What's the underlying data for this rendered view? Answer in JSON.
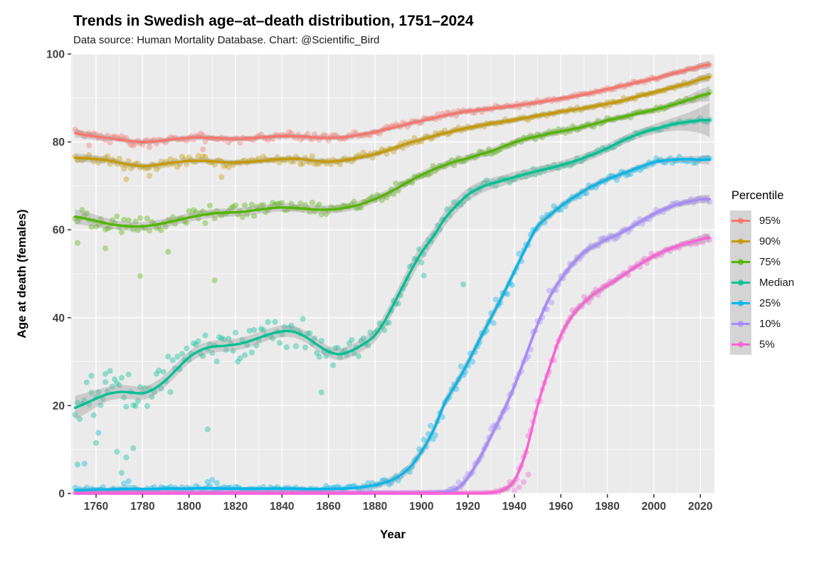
{
  "header": {
    "title": "Trends in Swedish age–at–death distribution, 1751–2024",
    "subtitle": "Data source: Human Mortality Database. Chart: @Scientific_Bird"
  },
  "axes": {
    "x": {
      "label": "Year",
      "ticks": [
        1760,
        1780,
        1800,
        1820,
        1840,
        1860,
        1880,
        1900,
        1920,
        1940,
        1960,
        1980,
        2000,
        2020
      ],
      "minor": [
        1750,
        1770,
        1790,
        1810,
        1830,
        1850,
        1870,
        1890,
        1910,
        1930,
        1950,
        1970,
        1990,
        2010
      ],
      "range": [
        1751,
        2024
      ]
    },
    "y": {
      "label": "Age at death (females)",
      "ticks": [
        0,
        20,
        40,
        60,
        80,
        100
      ],
      "minor": [
        10,
        30,
        50,
        70,
        90
      ],
      "range": [
        0,
        100
      ]
    }
  },
  "legend": {
    "title": "Percentile",
    "items": [
      {
        "label": "95%",
        "color": "#F8766D"
      },
      {
        "label": "90%",
        "color": "#C49A00"
      },
      {
        "label": "75%",
        "color": "#53B400"
      },
      {
        "label": "Median",
        "color": "#00C094"
      },
      {
        "label": "25%",
        "color": "#00B6EB"
      },
      {
        "label": "10%",
        "color": "#A58AFF"
      },
      {
        "label": "5%",
        "color": "#FB61D7"
      }
    ]
  },
  "style": {
    "panel_bg": "#EBEBEB",
    "grid_color": "#FFFFFF",
    "band_color": "#A0A0A0",
    "tick_label_color": "#404040",
    "axis_title_color": "#000000",
    "point_alpha": 0.38
  },
  "chart_data": {
    "type": "line",
    "title": "Trends in Swedish age-at-death distribution, 1751-2024",
    "xlabel": "Year",
    "ylabel": "Age at death (females)",
    "xlim": [
      1751,
      2024
    ],
    "ylim": [
      0,
      100
    ],
    "grid": "major+minor, white on gray panel",
    "legend_position": "right",
    "description": "Smoothed percentile curves of female age at death in Sweden with yearly scatter points and gray confidence bands",
    "x_years": [
      1751,
      1755,
      1760,
      1765,
      1770,
      1775,
      1780,
      1785,
      1790,
      1795,
      1800,
      1805,
      1810,
      1815,
      1820,
      1825,
      1830,
      1835,
      1840,
      1845,
      1850,
      1855,
      1860,
      1865,
      1870,
      1875,
      1880,
      1885,
      1890,
      1895,
      1900,
      1905,
      1910,
      1915,
      1920,
      1925,
      1930,
      1935,
      1940,
      1945,
      1950,
      1955,
      1960,
      1965,
      1970,
      1975,
      1980,
      1985,
      1990,
      1995,
      2000,
      2005,
      2010,
      2015,
      2020,
      2024
    ],
    "series": [
      {
        "name": "95%",
        "color": "#F8766D",
        "y": [
          82.0,
          81.6,
          81.2,
          80.9,
          80.5,
          80.2,
          80.0,
          80.1,
          80.4,
          80.7,
          81.0,
          81.0,
          80.9,
          80.8,
          80.7,
          80.8,
          81.0,
          81.2,
          81.3,
          81.3,
          81.2,
          81.0,
          80.9,
          81.0,
          81.3,
          81.8,
          82.3,
          82.9,
          83.5,
          84.2,
          84.8,
          85.4,
          86.0,
          86.5,
          87.0,
          87.3,
          87.6,
          87.9,
          88.2,
          88.6,
          89.0,
          89.4,
          89.9,
          90.3,
          90.8,
          91.4,
          92.0,
          92.6,
          93.2,
          93.8,
          94.4,
          95.1,
          95.8,
          96.5,
          97.2,
          97.6
        ],
        "ci_pts": [
          [
            1751,
            0.9
          ],
          [
            1770,
            0.55
          ],
          [
            1860,
            0.5
          ],
          [
            1900,
            0.5
          ],
          [
            2000,
            0.45
          ],
          [
            2015,
            0.6
          ],
          [
            2024,
            0.9
          ]
        ],
        "scatter_amp_pts": [
          [
            1751,
            1.1
          ],
          [
            1870,
            1.0
          ],
          [
            1900,
            0.8
          ],
          [
            1930,
            0.6
          ],
          [
            2024,
            0.5
          ]
        ],
        "outliers": [
          [
            1757,
            79.2
          ],
          [
            1783,
            78.8
          ],
          [
            1806,
            78.3
          ]
        ]
      },
      {
        "name": "90%",
        "color": "#C49A00",
        "y": [
          76.4,
          76.3,
          76.1,
          75.8,
          75.3,
          74.8,
          74.5,
          74.7,
          75.1,
          75.4,
          75.7,
          75.7,
          75.6,
          75.4,
          75.3,
          75.4,
          75.6,
          75.9,
          76.1,
          76.2,
          76.0,
          75.7,
          75.5,
          75.7,
          76.1,
          76.6,
          77.2,
          78.0,
          78.9,
          79.8,
          80.6,
          81.3,
          82.0,
          82.6,
          83.2,
          83.7,
          84.2,
          84.6,
          85.0,
          85.5,
          86.0,
          86.4,
          86.9,
          87.3,
          87.7,
          88.2,
          88.7,
          89.2,
          89.9,
          90.6,
          91.3,
          92.0,
          92.7,
          93.4,
          94.2,
          94.8
        ],
        "ci_pts": [
          [
            1751,
            1.0
          ],
          [
            1770,
            0.6
          ],
          [
            1900,
            0.55
          ],
          [
            2000,
            0.5
          ],
          [
            2015,
            0.65
          ],
          [
            2024,
            1.0
          ]
        ],
        "scatter_amp_pts": [
          [
            1751,
            1.4
          ],
          [
            1870,
            1.2
          ],
          [
            1900,
            0.9
          ],
          [
            1930,
            0.6
          ],
          [
            2024,
            0.5
          ]
        ],
        "outliers": [
          [
            1773,
            71.5
          ],
          [
            1783,
            72.3
          ],
          [
            1814,
            72.0
          ]
        ]
      },
      {
        "name": "75%",
        "color": "#53B400",
        "y": [
          63.0,
          62.6,
          62.0,
          61.4,
          61.0,
          60.8,
          60.8,
          61.1,
          61.6,
          62.2,
          62.8,
          63.3,
          63.7,
          63.9,
          64.0,
          64.2,
          64.6,
          64.9,
          65.1,
          65.0,
          64.8,
          64.6,
          64.6,
          64.8,
          65.3,
          66.0,
          67.0,
          68.2,
          69.6,
          71.1,
          72.5,
          73.7,
          74.7,
          75.6,
          76.3,
          77.1,
          77.9,
          78.9,
          79.9,
          80.7,
          81.3,
          81.9,
          82.4,
          82.9,
          83.5,
          84.2,
          84.9,
          85.5,
          86.1,
          86.7,
          87.3,
          88.0,
          88.7,
          89.6,
          90.5,
          91.0
        ],
        "ci_pts": [
          [
            1751,
            1.7
          ],
          [
            1770,
            1.0
          ],
          [
            1860,
            0.9
          ],
          [
            1900,
            0.85
          ],
          [
            2000,
            0.6
          ],
          [
            2012,
            0.8
          ],
          [
            2024,
            1.7
          ]
        ],
        "scatter_amp_pts": [
          [
            1751,
            2.5
          ],
          [
            1860,
            2.0
          ],
          [
            1900,
            1.2
          ],
          [
            1940,
            0.8
          ],
          [
            2024,
            0.6
          ]
        ],
        "outliers": [
          [
            1752,
            57.0
          ],
          [
            1764,
            55.8
          ],
          [
            1779,
            49.5
          ],
          [
            1791,
            55.0
          ],
          [
            1811,
            48.5
          ]
        ]
      },
      {
        "name": "Median",
        "color": "#00C094",
        "y": [
          19.5,
          20.4,
          21.6,
          22.6,
          23.1,
          23.0,
          22.8,
          23.8,
          25.8,
          28.4,
          31.0,
          32.6,
          33.4,
          33.6,
          33.9,
          34.5,
          35.4,
          36.3,
          36.9,
          36.8,
          35.7,
          33.9,
          32.3,
          31.7,
          32.5,
          34.0,
          36.0,
          40.0,
          45.1,
          50.2,
          54.8,
          58.4,
          62.5,
          65.5,
          68.0,
          69.5,
          70.5,
          71.2,
          72.0,
          72.7,
          73.4,
          74.0,
          74.7,
          75.5,
          76.4,
          77.4,
          78.6,
          79.9,
          81.1,
          82.1,
          82.9,
          83.6,
          84.2,
          84.6,
          84.9,
          85.0
        ],
        "ci_pts": [
          [
            1751,
            2.7
          ],
          [
            1765,
            1.6
          ],
          [
            1800,
            1.35
          ],
          [
            1860,
            1.3
          ],
          [
            1880,
            1.5
          ],
          [
            1895,
            1.85
          ],
          [
            1910,
            1.7
          ],
          [
            1930,
            1.3
          ],
          [
            1950,
            1.0
          ],
          [
            1995,
            1.0
          ],
          [
            2005,
            1.3
          ],
          [
            2013,
            1.8
          ],
          [
            2019,
            2.7
          ],
          [
            2024,
            3.9
          ]
        ],
        "scatter_amp_pts": [
          [
            1751,
            6.5
          ],
          [
            1800,
            5.0
          ],
          [
            1840,
            4.5
          ],
          [
            1875,
            3.5
          ],
          [
            1900,
            2.5
          ],
          [
            1930,
            1.2
          ],
          [
            1960,
            0.8
          ],
          [
            2024,
            0.6
          ]
        ],
        "outliers": [
          [
            1752,
            6.6
          ],
          [
            1758,
            26.8
          ],
          [
            1760,
            11.5
          ],
          [
            1764,
            27.2
          ],
          [
            1769,
            9.5
          ],
          [
            1771,
            4.7
          ],
          [
            1773,
            8.2
          ],
          [
            1776,
            10.3
          ],
          [
            1808,
            14.6
          ],
          [
            1857,
            23.0
          ],
          [
            1901,
            49.6
          ],
          [
            1918,
            47.6
          ]
        ]
      },
      {
        "name": "25%",
        "color": "#00B6EB",
        "y": [
          0.8,
          0.8,
          0.9,
          0.9,
          1.0,
          1.0,
          1.0,
          1.0,
          1.1,
          1.1,
          1.1,
          1.2,
          1.2,
          1.1,
          1.1,
          1.1,
          1.1,
          1.1,
          1.1,
          1.1,
          1.0,
          1.0,
          1.0,
          1.1,
          1.2,
          1.5,
          1.9,
          2.6,
          3.8,
          5.9,
          9.5,
          14.2,
          20.5,
          25.0,
          29.8,
          35.0,
          40.0,
          45.1,
          50.5,
          56.0,
          60.8,
          63.2,
          65.4,
          67.2,
          68.9,
          70.3,
          71.5,
          72.5,
          73.5,
          74.5,
          75.4,
          75.8,
          76.0,
          76.1,
          75.9,
          76.0
        ],
        "ci_pts": [
          [
            1751,
            0.5
          ],
          [
            1790,
            0.35
          ],
          [
            1870,
            0.35
          ],
          [
            1890,
            0.9
          ],
          [
            1900,
            1.2
          ],
          [
            1930,
            1.2
          ],
          [
            1960,
            0.8
          ],
          [
            2000,
            0.55
          ],
          [
            2015,
            0.7
          ],
          [
            2024,
            1.1
          ]
        ],
        "scatter_amp_pts": [
          [
            1751,
            0.75
          ],
          [
            1870,
            0.75
          ],
          [
            1890,
            1.6
          ],
          [
            1910,
            2.6
          ],
          [
            1950,
            2.4
          ],
          [
            1965,
            1.2
          ],
          [
            2024,
            0.8
          ]
        ],
        "outliers": [
          [
            1755,
            6.8
          ],
          [
            1761,
            13.8
          ],
          [
            1772,
            2.3
          ],
          [
            1774,
            2.8
          ],
          [
            1808,
            2.6
          ],
          [
            1810,
            3.1
          ],
          [
            1812,
            2.4
          ]
        ]
      },
      {
        "name": "10%",
        "color": "#A58AFF",
        "y": [
          0.05,
          0.05,
          0.05,
          0.05,
          0.05,
          0.05,
          0.05,
          0.05,
          0.05,
          0.05,
          0.05,
          0.05,
          0.05,
          0.05,
          0.05,
          0.05,
          0.05,
          0.05,
          0.05,
          0.05,
          0.05,
          0.05,
          0.05,
          0.05,
          0.05,
          0.05,
          0.05,
          0.05,
          0.05,
          0.05,
          0.1,
          0.15,
          0.3,
          1.0,
          3.6,
          8.0,
          13.1,
          18.4,
          24.4,
          31.5,
          38.5,
          44.5,
          48.8,
          52.2,
          54.9,
          56.5,
          57.9,
          59.1,
          60.5,
          62.1,
          63.6,
          64.8,
          65.7,
          66.4,
          66.9,
          67.0
        ],
        "ci_pts": [
          [
            1751,
            0.3
          ],
          [
            1905,
            0.3
          ],
          [
            1915,
            0.6
          ],
          [
            1925,
            1.0
          ],
          [
            1935,
            1.1
          ],
          [
            1960,
            0.9
          ],
          [
            1990,
            0.6
          ],
          [
            2010,
            0.6
          ],
          [
            2024,
            1.0
          ]
        ],
        "scatter_amp_pts": [
          [
            1751,
            0.1
          ],
          [
            1910,
            0.15
          ],
          [
            1920,
            1.8
          ],
          [
            1930,
            2.4
          ],
          [
            1955,
            2.2
          ],
          [
            1970,
            1.0
          ],
          [
            2024,
            0.8
          ]
        ],
        "outliers": []
      },
      {
        "name": "5%",
        "color": "#FB61D7",
        "y": [
          0.05,
          0.05,
          0.05,
          0.05,
          0.05,
          0.05,
          0.05,
          0.05,
          0.05,
          0.05,
          0.05,
          0.05,
          0.05,
          0.05,
          0.05,
          0.05,
          0.05,
          0.05,
          0.05,
          0.05,
          0.05,
          0.05,
          0.05,
          0.05,
          0.05,
          0.05,
          0.05,
          0.05,
          0.05,
          0.05,
          0.05,
          0.05,
          0.05,
          0.05,
          0.05,
          0.05,
          0.2,
          0.8,
          3.0,
          9.5,
          20.0,
          28.5,
          36.0,
          40.5,
          43.5,
          45.7,
          47.3,
          49.0,
          50.8,
          52.5,
          54.0,
          55.3,
          56.3,
          57.1,
          57.8,
          58.2
        ],
        "ci_pts": [
          [
            1751,
            0.3
          ],
          [
            1925,
            0.3
          ],
          [
            1935,
            0.6
          ],
          [
            1945,
            1.1
          ],
          [
            1965,
            0.9
          ],
          [
            1990,
            0.6
          ],
          [
            2010,
            0.6
          ],
          [
            2024,
            1.0
          ]
        ],
        "scatter_amp_pts": [
          [
            1751,
            0.08
          ],
          [
            1930,
            0.12
          ],
          [
            1940,
            1.6
          ],
          [
            1950,
            2.4
          ],
          [
            1965,
            2.0
          ],
          [
            1980,
            1.0
          ],
          [
            2024,
            0.8
          ]
        ],
        "outliers": [
          [
            1940,
            0.7
          ],
          [
            1942,
            1.4
          ],
          [
            1944,
            2.6
          ],
          [
            1946,
            4.3
          ]
        ]
      }
    ]
  }
}
